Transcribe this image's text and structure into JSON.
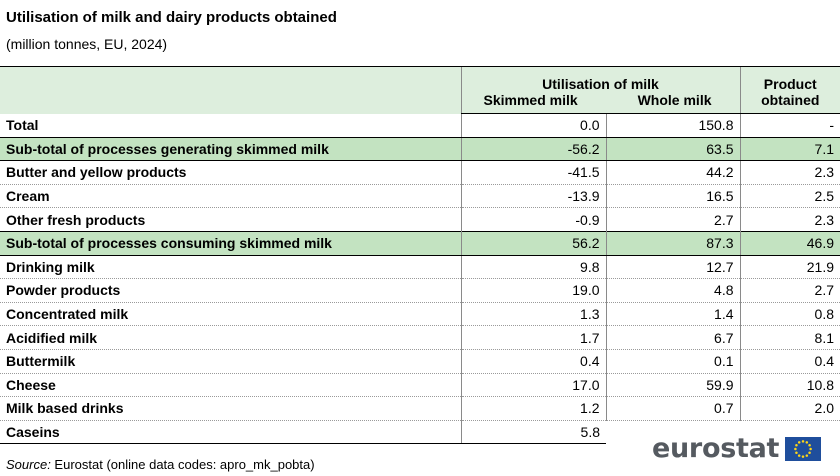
{
  "title": "Utilisation of milk and dairy products obtained",
  "subtitle": "(million tonnes, EU, 2024)",
  "table": {
    "group_header": "Utilisation of  milk",
    "col_skimmed": "Skimmed milk",
    "col_whole": "Whole milk",
    "col_product_line1": "Product",
    "col_product_line2": "obtained",
    "rows": [
      {
        "label": "Total",
        "skimmed": "0.0",
        "whole": "150.8",
        "product": "-",
        "kind": "total"
      },
      {
        "label": "Sub-total of processes generating skimmed milk",
        "skimmed": "-56.2",
        "whole": "63.5",
        "product": "7.1",
        "kind": "subtotal"
      },
      {
        "label": "Butter and yellow products",
        "skimmed": "-41.5",
        "whole": "44.2",
        "product": "2.3",
        "kind": "item"
      },
      {
        "label": "Cream",
        "skimmed": "-13.9",
        "whole": "16.5",
        "product": "2.5",
        "kind": "item"
      },
      {
        "label": "Other fresh products",
        "skimmed": "-0.9",
        "whole": "2.7",
        "product": "2.3",
        "kind": "item"
      },
      {
        "label": "Sub-total of processes consuming skimmed milk",
        "skimmed": "56.2",
        "whole": "87.3",
        "product": "46.9",
        "kind": "subtotal"
      },
      {
        "label": "Drinking milk",
        "skimmed": "9.8",
        "whole": "12.7",
        "product": "21.9",
        "kind": "item"
      },
      {
        "label": "Powder products",
        "skimmed": "19.0",
        "whole": "4.8",
        "product": "2.7",
        "kind": "item"
      },
      {
        "label": "Concentrated milk",
        "skimmed": "1.3",
        "whole": "1.4",
        "product": "0.8",
        "kind": "item"
      },
      {
        "label": "Acidified milk",
        "skimmed": "1.7",
        "whole": "6.7",
        "product": "8.1",
        "kind": "item"
      },
      {
        "label": "Buttermilk",
        "skimmed": "0.4",
        "whole": "0.1",
        "product": "0.4",
        "kind": "item"
      },
      {
        "label": "Cheese",
        "skimmed": "17.0",
        "whole": "59.9",
        "product": "10.8",
        "kind": "item"
      },
      {
        "label": "Milk based drinks",
        "skimmed": "1.2",
        "whole": "0.7",
        "product": "2.0",
        "kind": "item"
      },
      {
        "label": "Caseins",
        "skimmed": "5.8",
        "whole": "",
        "product": "",
        "kind": "last"
      }
    ]
  },
  "source_label": "Source:",
  "source_text": " Eurostat (online data codes: apro_mk_pobta)",
  "logo_text": "eurostat",
  "logo_flag_icon": "eu-flag-icon",
  "colors": {
    "header_bg": "#ddeedd",
    "subtotal_bg": "#c3e3c1",
    "logo_text": "#555a60",
    "flag_blue": "#1f4e9c",
    "flag_stars": "#ffd617"
  }
}
